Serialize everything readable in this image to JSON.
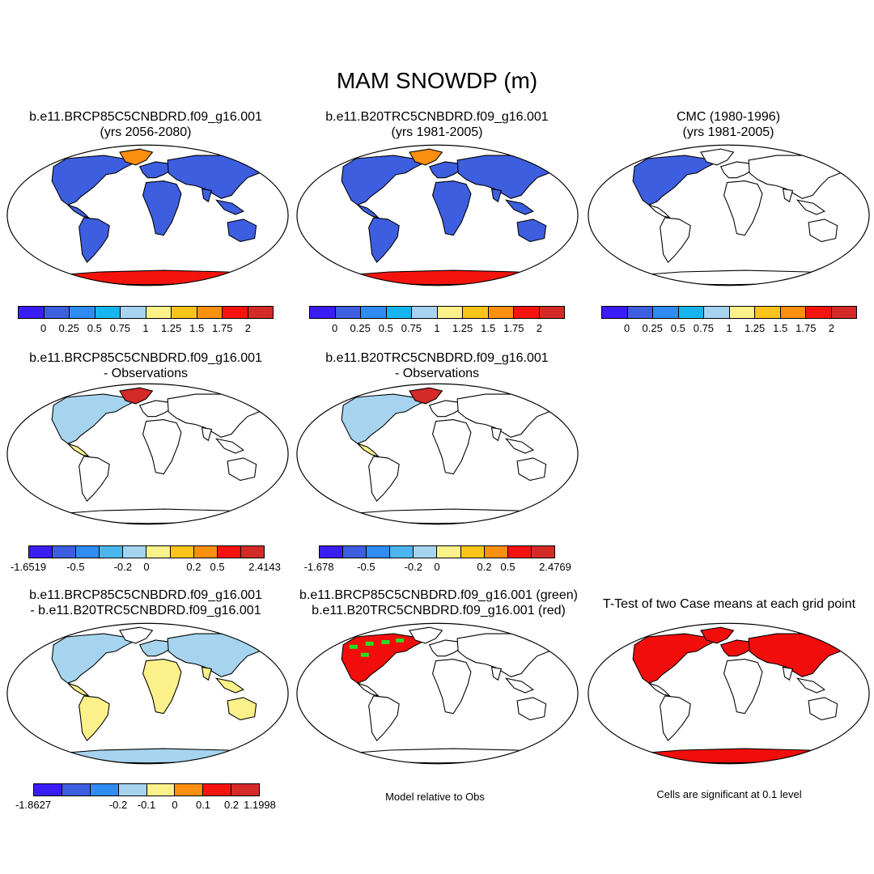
{
  "title": "MAM SNOWDP (m)",
  "panels": [
    {
      "id": "p1",
      "title1": "b.e11.BRCP85C5CNBDRD.f09_g16.001",
      "title2": "(yrs 2056-2080)",
      "fill": "snow"
    },
    {
      "id": "p2",
      "title1": "b.e11.B20TRC5CNBDRD.f09_g16.001",
      "title2": "(yrs 1981-2005)",
      "fill": "snow"
    },
    {
      "id": "p3",
      "title1": "CMC (1980-1996)",
      "title2": "(yrs 1981-2005)",
      "fill": "obs"
    },
    {
      "id": "p4",
      "title1": "b.e11.BRCP85C5CNBDRD.f09_g16.001",
      "title2": "- Observations",
      "fill": "diffobs"
    },
    {
      "id": "p5",
      "title1": "b.e11.B20TRC5CNBDRD.f09_g16.001",
      "title2": "- Observations",
      "fill": "diffobs"
    },
    {
      "id": "p6",
      "title1": "b.e11.BRCP85C5CNBDRD.f09_g16.001",
      "title2": "- b.e11.B20TRC5CNBDRD.f09_g16.001",
      "fill": "diffcase"
    },
    {
      "id": "p7",
      "title1": "b.e11.BRCP85C5CNBDRD.f09_g16.001 (green)",
      "title2": "b.e11.B20TRC5CNBDRD.f09_g16.001 (red)",
      "fill": "relobs"
    },
    {
      "id": "p8",
      "title1": "T-Test of two Case means at each grid point",
      "title2": "",
      "fill": "ttest"
    }
  ],
  "colorbars": {
    "snow": {
      "colors": [
        "#3a1cf5",
        "#3e5ee0",
        "#2f8cf2",
        "#17b5f0",
        "#a6d4ee",
        "#fbf18a",
        "#fbc41a",
        "#fb8f10",
        "#f5140d",
        "#d42a28"
      ],
      "labels": [
        "0",
        "0.25",
        "0.5",
        "0.75",
        "1",
        "1.25",
        "1.5",
        "1.75",
        "2"
      ]
    },
    "diffobs_a": {
      "colors": [
        "#3a1cf5",
        "#3e5ee0",
        "#2f8cf2",
        "#4ab5ee",
        "#a6d4ee",
        "#fbf18a",
        "#fbc41a",
        "#fb8f10",
        "#f5140d",
        "#d42a28"
      ],
      "labels": [
        "-1.6519",
        "-0.5",
        "-0.2",
        "0",
        "0.2",
        "0.5",
        "2.4143"
      ]
    },
    "diffobs_b": {
      "colors": [
        "#3a1cf5",
        "#3e5ee0",
        "#2f8cf2",
        "#4ab5ee",
        "#a6d4ee",
        "#fbf18a",
        "#fbc41a",
        "#fb8f10",
        "#f5140d",
        "#d42a28"
      ],
      "labels": [
        "-1.678",
        "-0.5",
        "-0.2",
        "0",
        "0.2",
        "0.5",
        "2.4769"
      ]
    },
    "diffcase": {
      "colors": [
        "#3a1cf5",
        "#3e5ee0",
        "#2f8cf2",
        "#a6d4ee",
        "#fbf18a",
        "#fb8f10",
        "#f5140d",
        "#d42a28"
      ],
      "labels": [
        "-1.8627",
        "-0.2",
        "-0.1",
        "0",
        "0.1",
        "0.2",
        "1.1998"
      ]
    }
  },
  "notes": {
    "model_relative": "Model relative to Obs",
    "significance": "Cells are significant at 0.1 level"
  },
  "fill_colors": {
    "ocean": "#ffffff",
    "land_line": "#000000",
    "snow_land": "#3e5ee0",
    "antarctic_hot": "#f5140d",
    "diff_light": "#a6d4ee",
    "diff_yellow": "#fbf18a",
    "green": "#22e020",
    "red": "#f20d0d"
  }
}
